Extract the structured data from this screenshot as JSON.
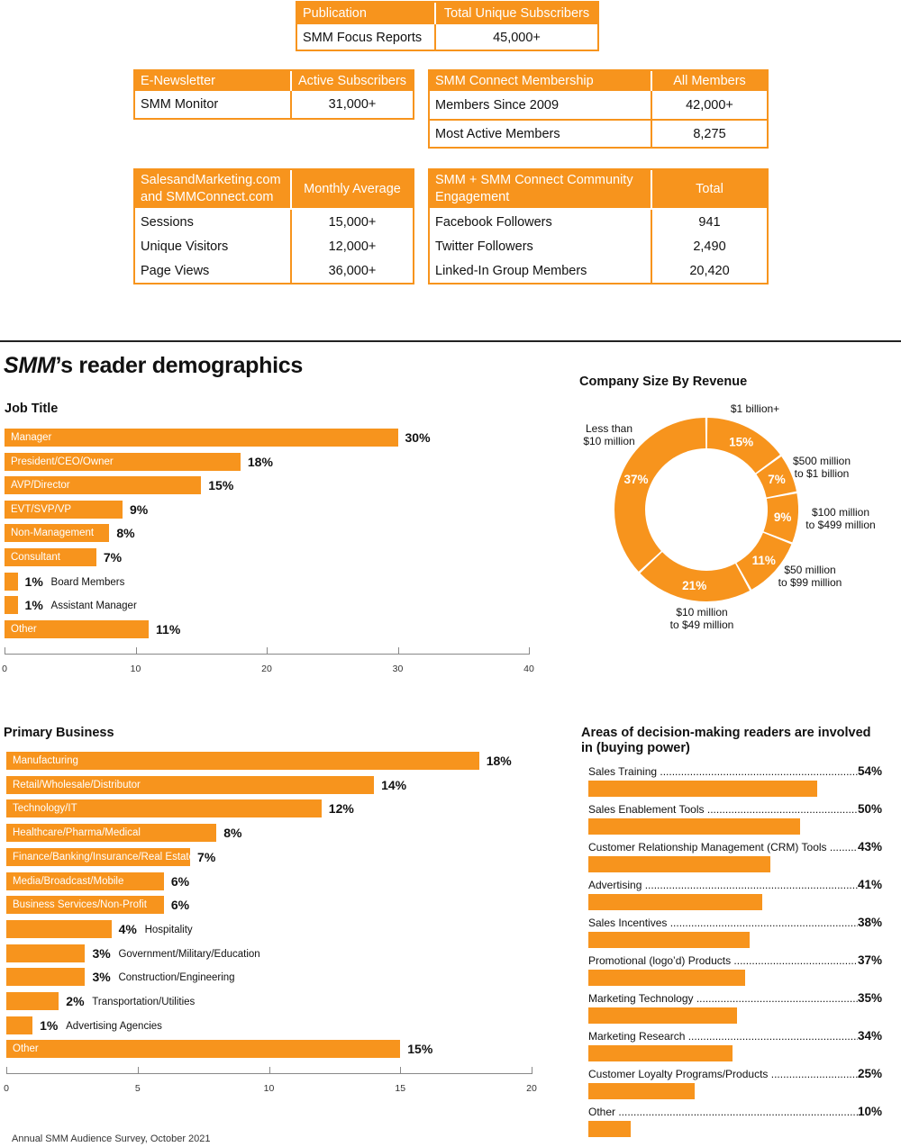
{
  "tables": {
    "publication": {
      "headers": [
        "Publication",
        "Total Unique Subscribers"
      ],
      "rows": [
        [
          "SMM Focus Reports",
          "45,000+"
        ]
      ]
    },
    "enewsletter": {
      "headers": [
        "E-Newsletter",
        "Active Subscribers"
      ],
      "rows": [
        [
          "SMM Monitor",
          "31,000+"
        ]
      ]
    },
    "membership": {
      "headers": [
        "SMM Connect Membership",
        "All Members"
      ],
      "rows": [
        [
          "Members Since 2009",
          "42,000+"
        ],
        [
          "Most Active Members",
          "8,275"
        ]
      ]
    },
    "web": {
      "headers": [
        "SalesandMarketing.com and SMMConnect.com",
        "Monthly Average"
      ],
      "rows": [
        [
          "Sessions",
          "15,000+"
        ],
        [
          "Unique Visitors",
          "12,000+"
        ],
        [
          "Page Views",
          "36,000+"
        ]
      ]
    },
    "community": {
      "headers": [
        "SMM + SMM Connect Community Engagement",
        "Total"
      ],
      "rows": [
        [
          "Facebook Followers",
          "941"
        ],
        [
          "Twitter Followers",
          "2,490"
        ],
        [
          "Linked-In Group Members",
          "20,420"
        ]
      ]
    }
  },
  "section": {
    "title_italic": "SMM",
    "title_rest": "’s reader demographics"
  },
  "footer": "Annual SMM Audience Survey, October 2021",
  "colors": {
    "accent": "#f7941d"
  },
  "chart_data": [
    {
      "id": "job_title",
      "type": "bar",
      "orientation": "horizontal",
      "title": "Job Title",
      "categories": [
        "Manager",
        "President/CEO/Owner",
        "AVP/Director",
        "EVT/SVP/VP",
        "Non-Management",
        "Consultant",
        "Board Members",
        "Assistant Manager",
        "Other"
      ],
      "values": [
        30,
        18,
        15,
        9,
        8,
        7,
        1,
        1,
        11
      ],
      "value_labels": [
        "30%",
        "18%",
        "15%",
        "9%",
        "8%",
        "7%",
        "1%",
        "1%",
        "11%"
      ],
      "xlim": [
        0,
        40
      ],
      "ticks": [
        0,
        10,
        20,
        30,
        40
      ]
    },
    {
      "id": "company_size",
      "type": "pie",
      "style": "donut",
      "title": "Company Size By Revenue",
      "categories": [
        "$1 billion+",
        "$500 million to $1 billion",
        "$100 million to $499 million",
        "$50 million to $99 million",
        "$10 million to $49 million",
        "Less than $10 million"
      ],
      "values": [
        15,
        7,
        9,
        11,
        21,
        37
      ],
      "value_labels": [
        "15%",
        "7%",
        "9%",
        "11%",
        "21%",
        "37%"
      ]
    },
    {
      "id": "primary_business",
      "type": "bar",
      "orientation": "horizontal",
      "title": "Primary Business",
      "categories": [
        "Manufacturing",
        "Retail/Wholesale/Distributor",
        "Technology/IT",
        "Healthcare/Pharma/Medical",
        "Finance/Banking/Insurance/Real Estate",
        "Media/Broadcast/Mobile",
        "Business Services/Non-Profit",
        "Hospitality",
        "Government/Military/Education",
        "Construction/Engineering",
        "Transportation/Utilities",
        "Advertising Agencies",
        "Other"
      ],
      "values": [
        18,
        14,
        12,
        8,
        7,
        6,
        6,
        4,
        3,
        3,
        2,
        1,
        15
      ],
      "value_labels": [
        "18%",
        "14%",
        "12%",
        "8%",
        "7%",
        "6%",
        "6%",
        "4%",
        "3%",
        "3%",
        "2%",
        "1%",
        "15%"
      ],
      "xlim": [
        0,
        20
      ],
      "ticks": [
        0,
        5,
        10,
        15,
        20
      ]
    },
    {
      "id": "decision_making",
      "type": "bar",
      "orientation": "horizontal",
      "title": "Areas of decision-making readers are involved in (buying power)",
      "categories": [
        "Sales Training",
        "Sales Enablement Tools",
        "Customer Relationship Management (CRM) Tools",
        "Advertising",
        "Sales Incentives",
        "Promotional (logo’d) Products",
        "Marketing Technology",
        "Marketing Research",
        "Customer Loyalty Programs/Products",
        "Other"
      ],
      "values": [
        54,
        50,
        43,
        41,
        38,
        37,
        35,
        34,
        25,
        10
      ],
      "value_labels": [
        "54%",
        "50%",
        "43%",
        "41%",
        "38%",
        "37%",
        "35%",
        "34%",
        "25%",
        "10%"
      ],
      "xlim": [
        0,
        100
      ]
    }
  ]
}
